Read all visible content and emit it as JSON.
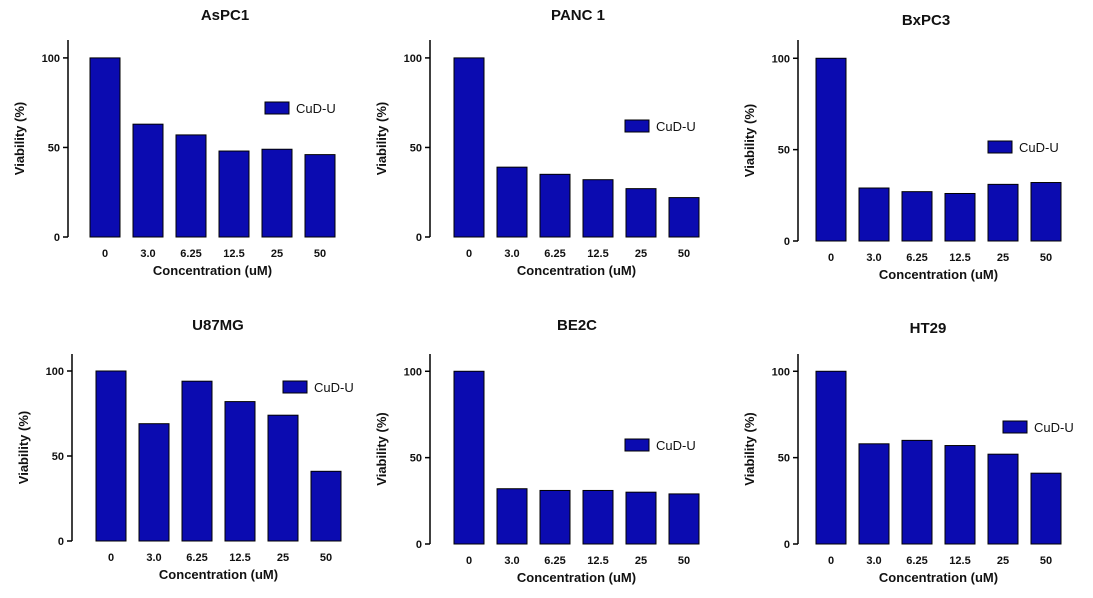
{
  "colors": {
    "bar": "#0b0bb0",
    "bar_edge": "#000000",
    "axis": "#000000"
  },
  "chart_data": [
    {
      "type": "bar",
      "title": "AsPC1",
      "xlabel": "Concentration (uM)",
      "ylabel": "Viability (%)",
      "categories": [
        "0",
        "3.0",
        "6.25",
        "12.5",
        "25",
        "50"
      ],
      "series": [
        {
          "name": "CuD-U",
          "values": [
            100,
            63,
            57,
            48,
            49,
            46
          ]
        }
      ],
      "ylim": [
        0,
        110
      ],
      "yticks": [
        0,
        50,
        100
      ],
      "legend": "right"
    },
    {
      "type": "bar",
      "title": "PANC 1",
      "xlabel": "Concentration (uM)",
      "ylabel": "Viability (%)",
      "categories": [
        "0",
        "3.0",
        "6.25",
        "12.5",
        "25",
        "50"
      ],
      "series": [
        {
          "name": "CuD-U",
          "values": [
            100,
            39,
            35,
            32,
            27,
            22
          ]
        }
      ],
      "ylim": [
        0,
        110
      ],
      "yticks": [
        0,
        50,
        100
      ],
      "legend": "right"
    },
    {
      "type": "bar",
      "title": "BxPC3",
      "xlabel": "Concentration (uM)",
      "ylabel": "Viability (%)",
      "categories": [
        "0",
        "3.0",
        "6.25",
        "12.5",
        "25",
        "50"
      ],
      "series": [
        {
          "name": "CuD-U",
          "values": [
            100,
            29,
            27,
            26,
            31,
            32
          ]
        }
      ],
      "ylim": [
        0,
        110
      ],
      "yticks": [
        0,
        50,
        100
      ],
      "legend": "right"
    },
    {
      "type": "bar",
      "title": "U87MG",
      "xlabel": "Concentration (uM)",
      "ylabel": "Viability (%)",
      "categories": [
        "0",
        "3.0",
        "6.25",
        "12.5",
        "25",
        "50"
      ],
      "series": [
        {
          "name": "CuD-U",
          "values": [
            100,
            69,
            94,
            82,
            74,
            41
          ]
        }
      ],
      "ylim": [
        0,
        110
      ],
      "yticks": [
        0,
        50,
        100
      ],
      "legend": "right"
    },
    {
      "type": "bar",
      "title": "BE2C",
      "xlabel": "Concentration (uM)",
      "ylabel": "Viability (%)",
      "categories": [
        "0",
        "3.0",
        "6.25",
        "12.5",
        "25",
        "50"
      ],
      "series": [
        {
          "name": "CuD-U",
          "values": [
            100,
            32,
            31,
            31,
            30,
            29
          ]
        }
      ],
      "ylim": [
        0,
        110
      ],
      "yticks": [
        0,
        50,
        100
      ],
      "legend": "right"
    },
    {
      "type": "bar",
      "title": "HT29",
      "xlabel": "Concentration (uM)",
      "ylabel": "Viability (%)",
      "categories": [
        "0",
        "3.0",
        "6.25",
        "12.5",
        "25",
        "50"
      ],
      "series": [
        {
          "name": "CuD-U",
          "values": [
            100,
            58,
            60,
            57,
            52,
            41
          ]
        }
      ],
      "ylim": [
        0,
        110
      ],
      "yticks": [
        0,
        50,
        100
      ],
      "legend": "right"
    }
  ]
}
